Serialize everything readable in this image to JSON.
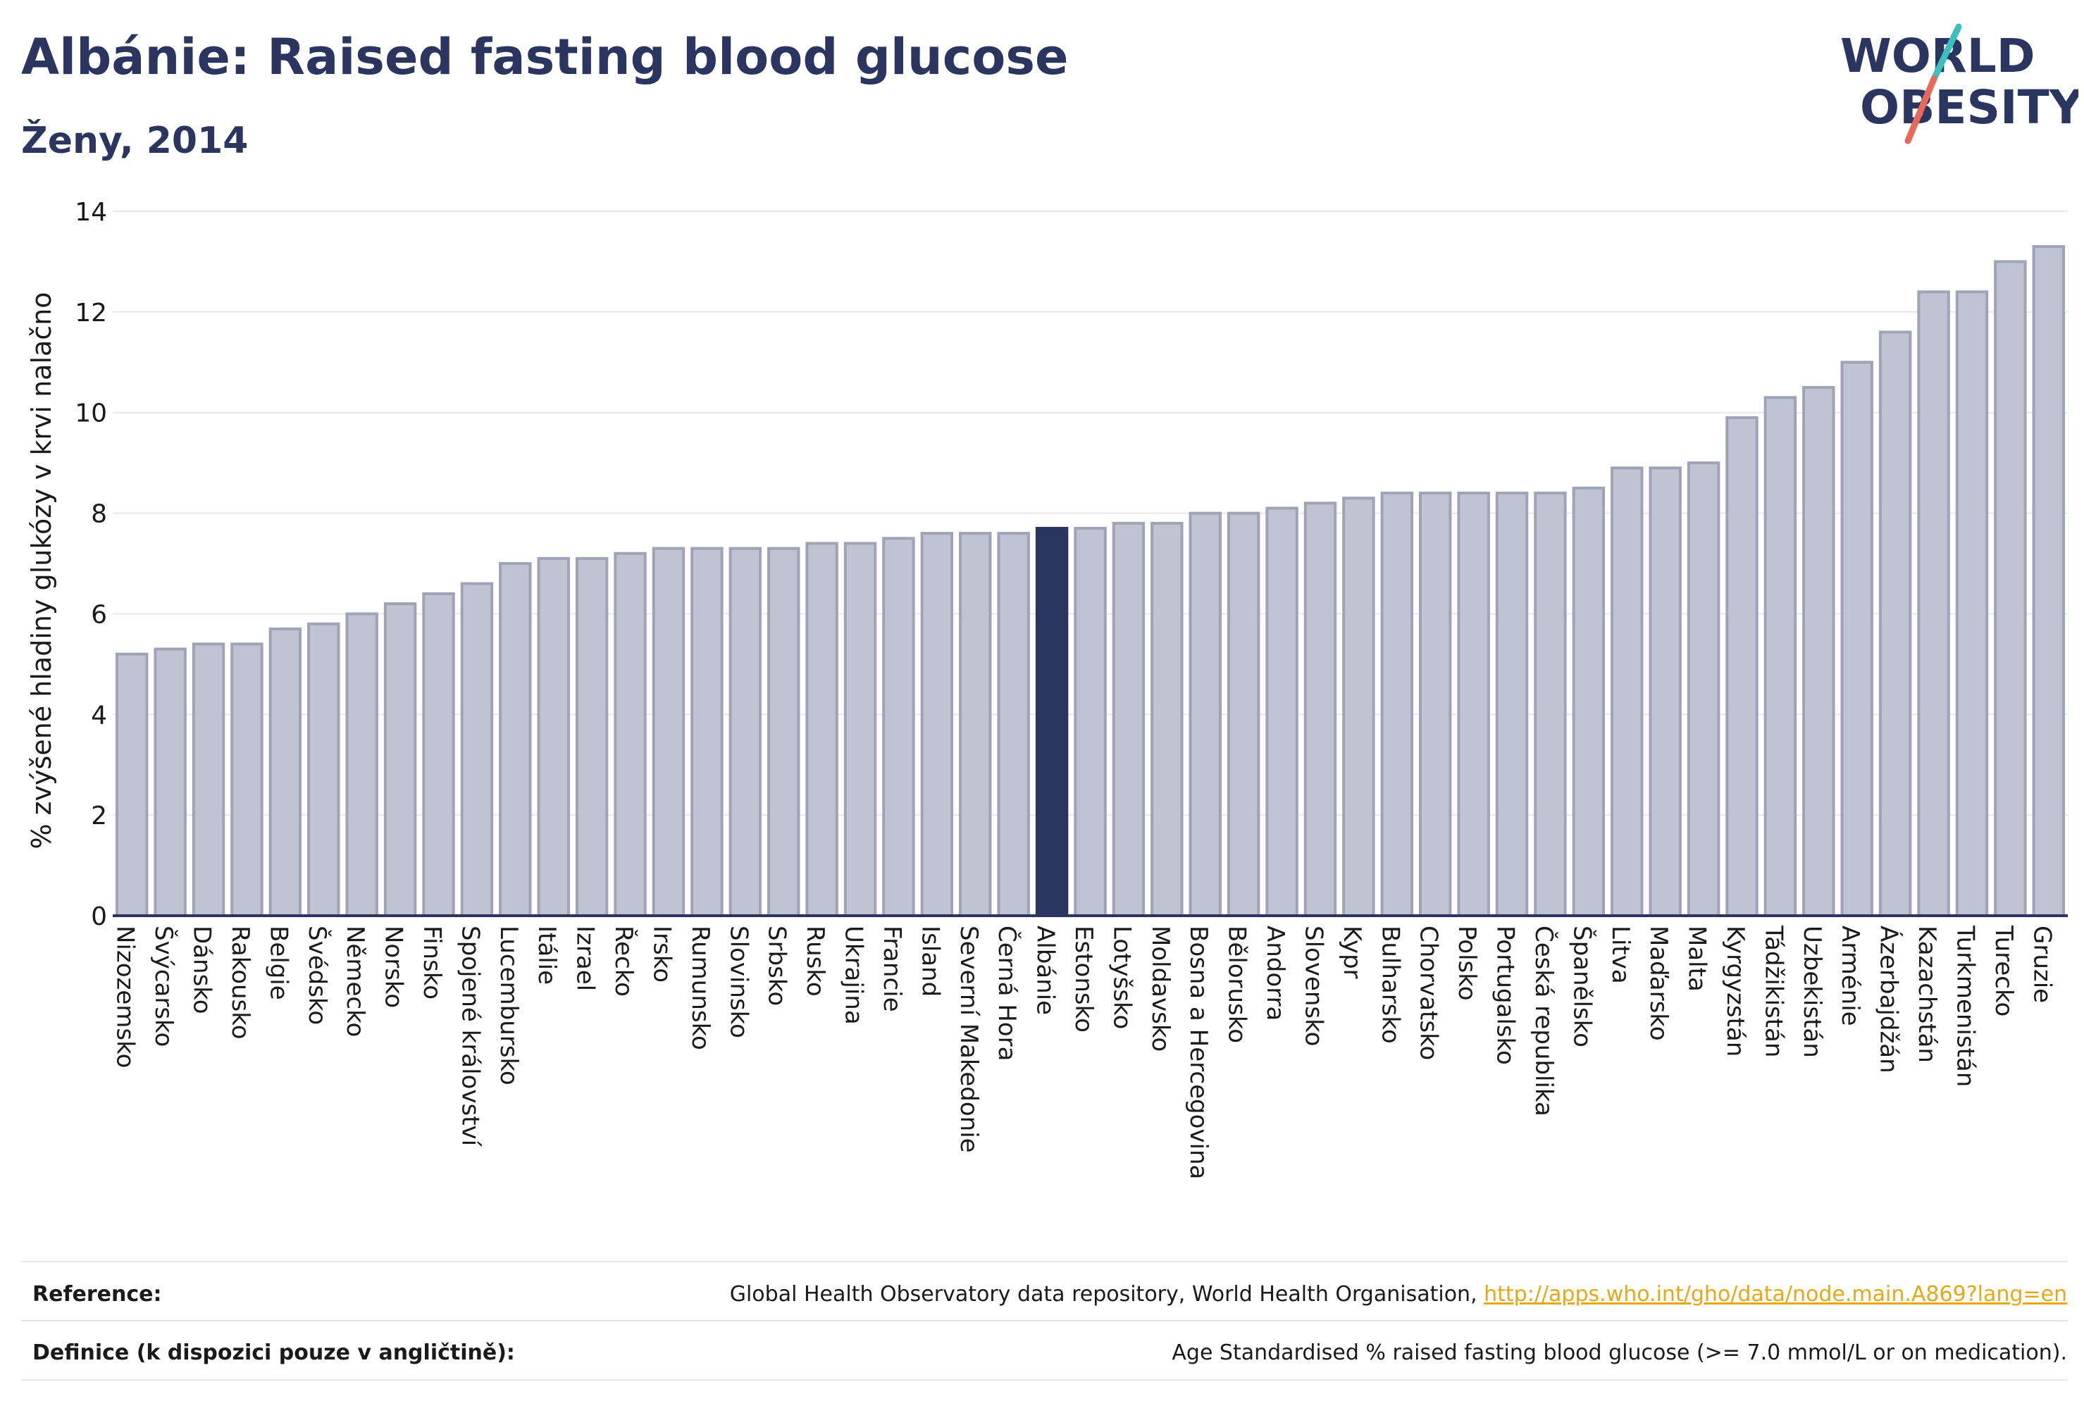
{
  "header": {
    "title": "Albánie: Raised fasting blood glucose",
    "subtitle": "Ženy, 2014"
  },
  "logo": {
    "line1": "WORLD",
    "line2": "OBESITY",
    "text_color": "#2a3560",
    "slash_teal": "#3bbfbf",
    "slash_red": "#e8685a"
  },
  "footer": {
    "reference_label": "Reference:",
    "reference_text": "Global Health Observatory data repository, World Health Organisation, ",
    "reference_link": "http://apps.who.int/gho/data/node.main.A869?lang=en",
    "definition_label": "Definice (k dispozici pouze v angličtině):",
    "definition_text": "Age Standardised % raised fasting blood glucose (>= 7.0 mmol/L or on medication)."
  },
  "chart_data": {
    "type": "bar",
    "ylabel": "% zvýšené hladiny glukózy v krvi nalačno",
    "ylim": [
      0,
      14
    ],
    "yticks": [
      0,
      2,
      4,
      6,
      8,
      10,
      12,
      14
    ],
    "grid": true,
    "highlight": "Albánie",
    "colors": {
      "bar": "#c0c3d1",
      "bar_edge": "#9ea3b8",
      "highlight": "#2a3560",
      "grid": "#e8e8ec",
      "axis": "#2a3560"
    },
    "categories": [
      "Nizozemsko",
      "Švýcarsko",
      "Dánsko",
      "Rakousko",
      "Belgie",
      "Švédsko",
      "Německo",
      "Norsko",
      "Finsko",
      "Spojené království",
      "Lucembursko",
      "Itálie",
      "Izrael",
      "Řecko",
      "Irsko",
      "Rumunsko",
      "Slovinsko",
      "Srbsko",
      "Rusko",
      "Ukrajina",
      "Francie",
      "Island",
      "Severní Makedonie",
      "Černá Hora",
      "Albánie",
      "Estonsko",
      "Lotyšsko",
      "Moldavsko",
      "Bosna a Hercegovina",
      "Bělorusko",
      "Andorra",
      "Slovensko",
      "Kypr",
      "Bulharsko",
      "Chorvatsko",
      "Polsko",
      "Portugalsko",
      "Česká republika",
      "Španělsko",
      "Litva",
      "Maďarsko",
      "Malta",
      "Kyrgyzstán",
      "Tádžikistán",
      "Uzbekistán",
      "Arménie",
      "Ázerbajdžán",
      "Kazachstán",
      "Turkmenistán",
      "Turecko",
      "Gruzie"
    ],
    "values": [
      5.2,
      5.3,
      5.4,
      5.4,
      5.7,
      5.8,
      6.0,
      6.2,
      6.4,
      6.6,
      7.0,
      7.1,
      7.1,
      7.2,
      7.3,
      7.3,
      7.3,
      7.3,
      7.4,
      7.4,
      7.5,
      7.6,
      7.6,
      7.6,
      7.7,
      7.7,
      7.8,
      7.8,
      8.0,
      8.0,
      8.1,
      8.2,
      8.3,
      8.4,
      8.4,
      8.4,
      8.4,
      8.4,
      8.5,
      8.9,
      8.9,
      9.0,
      9.9,
      10.3,
      10.5,
      11.0,
      11.6,
      12.4,
      12.4,
      13.0,
      13.3
    ]
  }
}
